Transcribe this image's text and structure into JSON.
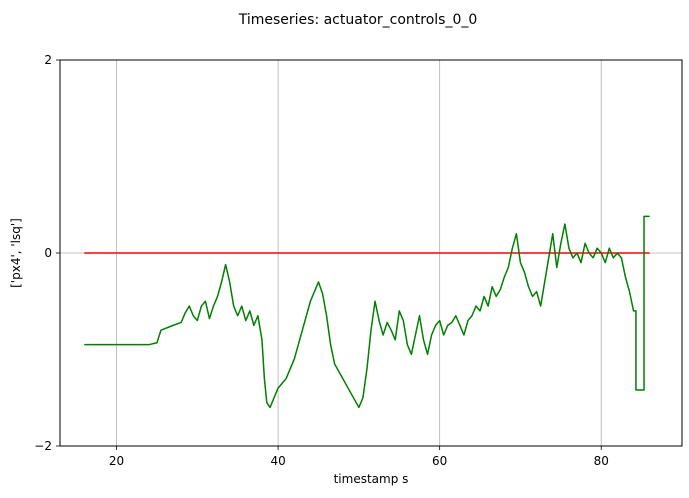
{
  "chart_data": {
    "type": "line",
    "title": "Timeseries: actuator_controls_0_0",
    "xlabel": "timestamp s",
    "ylabel": "['px4', 'lsq']",
    "xlim": [
      13,
      90
    ],
    "ylim": [
      -2,
      2
    ],
    "x_ticks": [
      20,
      40,
      60,
      80
    ],
    "y_ticks": [
      -2,
      0,
      2
    ],
    "x_tick_labels": [
      "20",
      "40",
      "60",
      "80"
    ],
    "y_tick_labels": [
      "−2",
      "0",
      "2"
    ],
    "grid": "x-only",
    "legend": "none",
    "series": [
      {
        "color": "#ff0000",
        "x": [
          16.0,
          86.0
        ],
        "y": [
          0.0,
          0.0
        ]
      },
      {
        "color": "#008000",
        "x": [
          16.0,
          24.0,
          25.0,
          25.5,
          27.0,
          28.0,
          28.5,
          29.0,
          29.5,
          30.0,
          30.5,
          31.0,
          31.5,
          32.0,
          32.5,
          33.0,
          33.5,
          34.0,
          34.5,
          35.0,
          35.5,
          36.0,
          36.5,
          37.0,
          37.5,
          38.0,
          38.3,
          38.6,
          39.0,
          39.5,
          40.0,
          41.0,
          42.0,
          43.0,
          44.0,
          45.0,
          45.5,
          46.0,
          46.5,
          47.0,
          48.0,
          49.0,
          50.0,
          50.5,
          51.0,
          51.5,
          52.0,
          52.5,
          53.0,
          53.5,
          54.0,
          54.5,
          55.0,
          55.5,
          56.0,
          56.5,
          57.0,
          57.5,
          58.0,
          58.5,
          59.0,
          59.5,
          60.0,
          60.5,
          61.0,
          61.5,
          62.0,
          62.5,
          63.0,
          63.5,
          64.0,
          64.5,
          65.0,
          65.5,
          66.0,
          66.5,
          67.0,
          67.5,
          68.0,
          68.5,
          69.0,
          69.5,
          70.0,
          70.5,
          71.0,
          71.5,
          72.0,
          72.5,
          73.0,
          73.5,
          74.0,
          74.5,
          75.0,
          75.5,
          76.0,
          76.5,
          77.0,
          77.5,
          78.0,
          78.5,
          79.0,
          79.5,
          80.0,
          80.5,
          81.0,
          81.5,
          82.0,
          82.5,
          83.0,
          83.5,
          84.0,
          84.3,
          84.3,
          85.3,
          85.3,
          86.0
        ],
        "y": [
          -0.95,
          -0.95,
          -0.93,
          -0.8,
          -0.75,
          -0.72,
          -0.62,
          -0.55,
          -0.65,
          -0.7,
          -0.55,
          -0.5,
          -0.68,
          -0.55,
          -0.45,
          -0.3,
          -0.12,
          -0.3,
          -0.55,
          -0.65,
          -0.55,
          -0.7,
          -0.6,
          -0.75,
          -0.65,
          -0.9,
          -1.3,
          -1.55,
          -1.6,
          -1.5,
          -1.4,
          -1.3,
          -1.1,
          -0.8,
          -0.5,
          -0.3,
          -0.42,
          -0.65,
          -0.95,
          -1.15,
          -1.3,
          -1.45,
          -1.6,
          -1.5,
          -1.2,
          -0.8,
          -0.5,
          -0.7,
          -0.85,
          -0.72,
          -0.8,
          -0.9,
          -0.6,
          -0.7,
          -0.95,
          -1.05,
          -0.85,
          -0.65,
          -0.9,
          -1.05,
          -0.85,
          -0.75,
          -0.7,
          -0.85,
          -0.75,
          -0.72,
          -0.65,
          -0.75,
          -0.85,
          -0.7,
          -0.65,
          -0.55,
          -0.6,
          -0.45,
          -0.55,
          -0.35,
          -0.45,
          -0.38,
          -0.25,
          -0.15,
          0.05,
          0.2,
          -0.1,
          -0.2,
          -0.35,
          -0.45,
          -0.4,
          -0.55,
          -0.3,
          -0.05,
          0.2,
          -0.15,
          0.1,
          0.3,
          0.05,
          -0.05,
          0.0,
          -0.1,
          0.1,
          0.0,
          -0.05,
          0.05,
          0.0,
          -0.1,
          0.05,
          -0.05,
          0.0,
          -0.05,
          -0.25,
          -0.4,
          -0.6,
          -0.6,
          -1.42,
          -1.42,
          0.38,
          0.38
        ]
      }
    ]
  }
}
